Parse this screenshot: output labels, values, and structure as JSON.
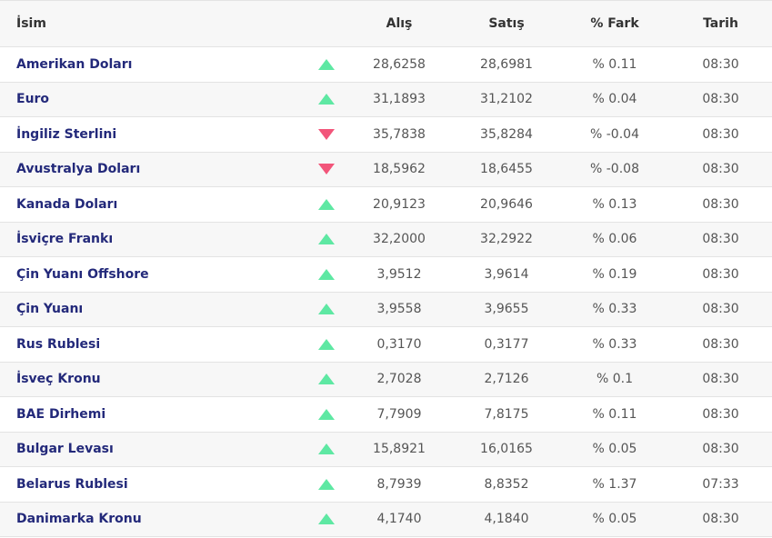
{
  "header": {
    "name": "İsim",
    "buy": "Alış",
    "sell": "Satış",
    "diff": "% Fark",
    "date": "Tarih"
  },
  "colors": {
    "up": "#5ee8a3",
    "down": "#f2557a",
    "name_text": "#23297a"
  },
  "rows": [
    {
      "name": "Amerikan Doları",
      "direction": "up",
      "buy": "28,6258",
      "sell": "28,6981",
      "diff": "% 0.11",
      "date": "08:30"
    },
    {
      "name": "Euro",
      "direction": "up",
      "buy": "31,1893",
      "sell": "31,2102",
      "diff": "% 0.04",
      "date": "08:30"
    },
    {
      "name": "İngiliz Sterlini",
      "direction": "down",
      "buy": "35,7838",
      "sell": "35,8284",
      "diff": "% -0.04",
      "date": "08:30"
    },
    {
      "name": "Avustralya Doları",
      "direction": "down",
      "buy": "18,5962",
      "sell": "18,6455",
      "diff": "% -0.08",
      "date": "08:30"
    },
    {
      "name": "Kanada Doları",
      "direction": "up",
      "buy": "20,9123",
      "sell": "20,9646",
      "diff": "% 0.13",
      "date": "08:30"
    },
    {
      "name": "İsviçre Frankı",
      "direction": "up",
      "buy": "32,2000",
      "sell": "32,2922",
      "diff": "% 0.06",
      "date": "08:30"
    },
    {
      "name": "Çin Yuanı Offshore",
      "direction": "up",
      "buy": "3,9512",
      "sell": "3,9614",
      "diff": "% 0.19",
      "date": "08:30"
    },
    {
      "name": "Çin Yuanı",
      "direction": "up",
      "buy": "3,9558",
      "sell": "3,9655",
      "diff": "% 0.33",
      "date": "08:30"
    },
    {
      "name": "Rus Rublesi",
      "direction": "up",
      "buy": "0,3170",
      "sell": "0,3177",
      "diff": "% 0.33",
      "date": "08:30"
    },
    {
      "name": "İsveç Kronu",
      "direction": "up",
      "buy": "2,7028",
      "sell": "2,7126",
      "diff": "% 0.1",
      "date": "08:30"
    },
    {
      "name": "BAE Dirhemi",
      "direction": "up",
      "buy": "7,7909",
      "sell": "7,8175",
      "diff": "% 0.11",
      "date": "08:30"
    },
    {
      "name": "Bulgar Levası",
      "direction": "up",
      "buy": "15,8921",
      "sell": "16,0165",
      "diff": "% 0.05",
      "date": "08:30"
    },
    {
      "name": "Belarus Rublesi",
      "direction": "up",
      "buy": "8,7939",
      "sell": "8,8352",
      "diff": "% 1.37",
      "date": "07:33"
    },
    {
      "name": "Danimarka Kronu",
      "direction": "up",
      "buy": "4,1740",
      "sell": "4,1840",
      "diff": "% 0.05",
      "date": "08:30"
    }
  ]
}
